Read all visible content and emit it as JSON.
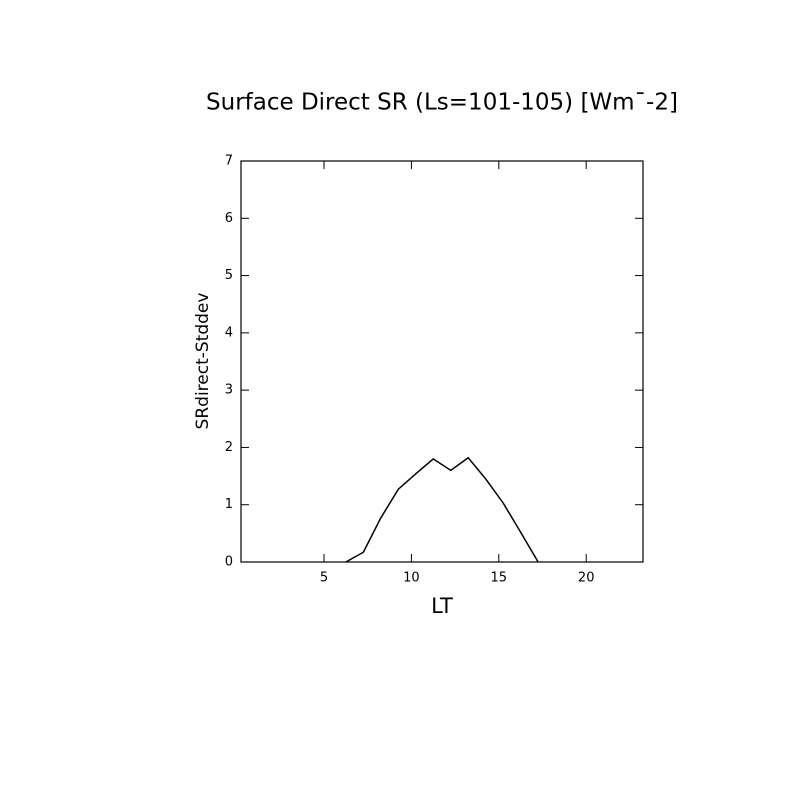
{
  "chart_data": {
    "type": "line",
    "title": "Surface Direct SR (Ls=101-105) [Wm¯-2]",
    "x_label": "LT",
    "y_label": "SRdirect-Stddev",
    "x": [
      6.25,
      7.25,
      8.25,
      9.25,
      10.25,
      11.25,
      12.25,
      13.25,
      14.25,
      15.25,
      16.25,
      17.25
    ],
    "series": [
      {
        "name": "SRdirect-Stddev",
        "color": "#000000",
        "values": [
          0,
          0.17,
          0.77,
          1.27,
          1.54,
          1.8,
          1.6,
          1.82,
          1.45,
          1.03,
          0.52,
          0
        ]
      }
    ],
    "xlim": [
      0.25,
      23.25
    ],
    "xticks": [
      5,
      10,
      15,
      20
    ],
    "ylim": [
      0,
      7
    ],
    "yticks": [
      0,
      1,
      2,
      3,
      4,
      5,
      6,
      7
    ]
  }
}
